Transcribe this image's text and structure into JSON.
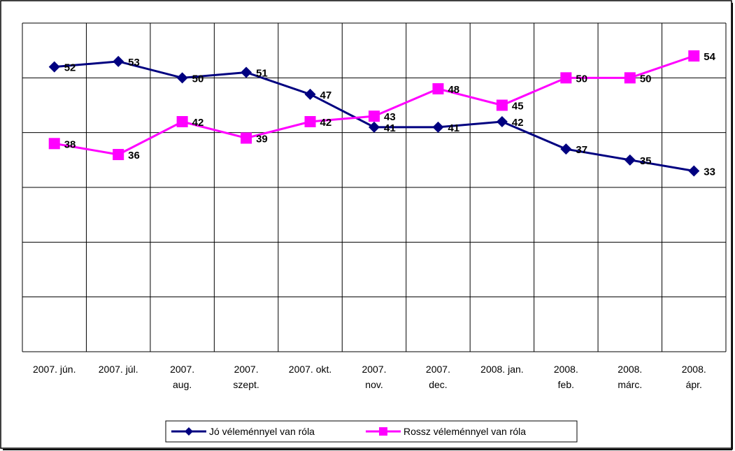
{
  "chart_data": {
    "type": "line",
    "categories": [
      "2007. jún.",
      "2007. júl.",
      "2007.\naug.",
      "2007.\nszept.",
      "2007. okt.",
      "2007.\nnov.",
      "2007.\ndec.",
      "2008. jan.",
      "2008.\nfeb.",
      "2008.\nmárc.",
      "2008.\nápr."
    ],
    "series": [
      {
        "name": "Jó véleménnyel van róla",
        "color": "#000080",
        "marker": "diamond",
        "values": [
          52,
          53,
          50,
          51,
          47,
          41,
          41,
          42,
          37,
          35,
          33
        ]
      },
      {
        "name": "Rossz véleménnyel van róla",
        "color": "#ff00ff",
        "marker": "square",
        "values": [
          38,
          36,
          42,
          39,
          42,
          43,
          48,
          45,
          50,
          50,
          54
        ]
      }
    ],
    "ylim": [
      0,
      60
    ],
    "yticks": [
      0,
      10,
      20,
      30,
      40,
      50,
      60
    ],
    "grid": true,
    "legend": "bottom"
  }
}
